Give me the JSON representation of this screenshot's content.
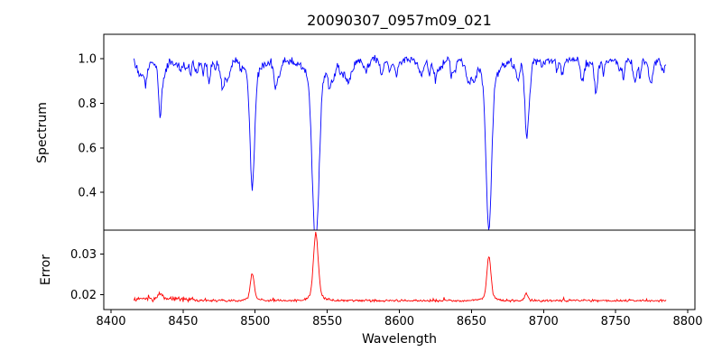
{
  "figure": {
    "title": "20090307_0957m09_021",
    "xlabel": "Wavelength",
    "background": "#ffffff",
    "axis_color": "#000000",
    "xlim": [
      8395,
      8805
    ],
    "x_ticks": [
      8400,
      8450,
      8500,
      8550,
      8600,
      8650,
      8700,
      8750,
      8800
    ],
    "x_tick_labels": [
      "8400",
      "8450",
      "8500",
      "8550",
      "8600",
      "8650",
      "8700",
      "8750",
      "8800"
    ]
  },
  "chart_data": [
    {
      "type": "line",
      "name": "spectrum",
      "title": "20090307_0957m09_021",
      "ylabel": "Spectrum",
      "color": "#0000ff",
      "x_range": [
        8416,
        8785
      ],
      "ylim": [
        0.23,
        1.11
      ],
      "yticks": [
        0.4,
        0.6,
        0.8,
        1.0
      ],
      "ytick_labels": [
        "0.4",
        "0.6",
        "0.8",
        "1.0"
      ],
      "continuum": 0.995,
      "noise_amplitude": 0.024,
      "random_lines": {
        "seed": 42,
        "count": 60,
        "min_depth": 0.015,
        "max_extra_depth": 0.06,
        "min_width": 0.6,
        "max_width": 1.8
      },
      "absorption_lines": [
        {
          "center": 8424.0,
          "depth": 0.1,
          "width": 1.0
        },
        {
          "center": 8434.0,
          "depth": 0.2,
          "width": 1.0
        },
        {
          "center": 8468.0,
          "depth": 0.09,
          "width": 1.0
        },
        {
          "center": 8498.0,
          "depth": 0.51,
          "width": 1.6
        },
        {
          "center": 8514.0,
          "depth": 0.12,
          "width": 1.0
        },
        {
          "center": 8542.1,
          "depth": 0.7,
          "width": 2.1
        },
        {
          "center": 8598.0,
          "depth": 0.07,
          "width": 0.9
        },
        {
          "center": 8621.0,
          "depth": 0.06,
          "width": 0.9
        },
        {
          "center": 8648.0,
          "depth": 0.07,
          "width": 0.9
        },
        {
          "center": 8662.1,
          "depth": 0.67,
          "width": 1.9
        },
        {
          "center": 8688.0,
          "depth": 0.21,
          "width": 1.1
        },
        {
          "center": 8713.0,
          "depth": 0.06,
          "width": 0.9
        },
        {
          "center": 8736.0,
          "depth": 0.07,
          "width": 0.9
        },
        {
          "center": 8763.0,
          "depth": 0.08,
          "width": 0.9
        }
      ]
    },
    {
      "type": "line",
      "name": "error",
      "ylabel": "Error",
      "color": "#ff0000",
      "x_range": [
        8416,
        8785
      ],
      "ylim": [
        0.0163,
        0.0359
      ],
      "yticks": [
        0.02,
        0.03
      ],
      "ytick_labels": [
        "0.02",
        "0.03"
      ],
      "baseline": 0.0185,
      "noise_amplitude": 0.00035,
      "spike_amplitude": 0.0009,
      "seed": 7,
      "noisy_region": {
        "start": 8416,
        "end": 8458,
        "extra_level": 0.0004,
        "extra_noise": 0.0006
      },
      "peaks": [
        {
          "center": 8434.0,
          "height": 0.0012,
          "width": 1.2
        },
        {
          "center": 8498.0,
          "height": 0.0062,
          "width": 1.3
        },
        {
          "center": 8542.1,
          "height": 0.015,
          "width": 1.6
        },
        {
          "center": 8662.1,
          "height": 0.01,
          "width": 1.4
        },
        {
          "center": 8688.0,
          "height": 0.0017,
          "width": 1.0
        }
      ]
    }
  ]
}
